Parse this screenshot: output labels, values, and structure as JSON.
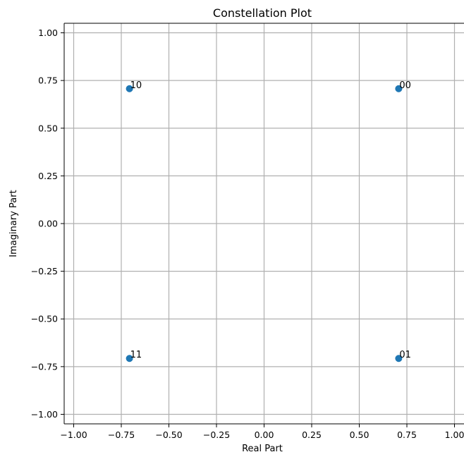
{
  "chart_data": {
    "type": "scatter",
    "title": "Constellation Plot",
    "xlabel": "Real Part",
    "ylabel": "Imaginary Part",
    "xlim": [
      -1.05,
      1.05
    ],
    "ylim": [
      -1.05,
      1.05
    ],
    "xticks": [
      -1.0,
      -0.75,
      -0.5,
      -0.25,
      0.0,
      0.25,
      0.5,
      0.75,
      1.0
    ],
    "yticks": [
      -1.0,
      -0.75,
      -0.5,
      -0.25,
      0.0,
      0.25,
      0.5,
      0.75,
      1.0
    ],
    "xtick_labels": [
      "−1.00",
      "−0.75",
      "−0.50",
      "−0.25",
      "0.00",
      "0.25",
      "0.50",
      "0.75",
      "1.00"
    ],
    "ytick_labels": [
      "−1.00",
      "−0.75",
      "−0.50",
      "−0.25",
      "0.00",
      "0.25",
      "0.50",
      "0.75",
      "1.00"
    ],
    "grid": true,
    "points": [
      {
        "x": 0.707,
        "y": 0.707,
        "label": "00"
      },
      {
        "x": 0.707,
        "y": -0.707,
        "label": "01"
      },
      {
        "x": -0.707,
        "y": 0.707,
        "label": "10"
      },
      {
        "x": -0.707,
        "y": -0.707,
        "label": "11"
      }
    ],
    "colors": {
      "marker": "#1f77b4",
      "grid": "#b0b0b0",
      "axes": "#000000"
    }
  }
}
